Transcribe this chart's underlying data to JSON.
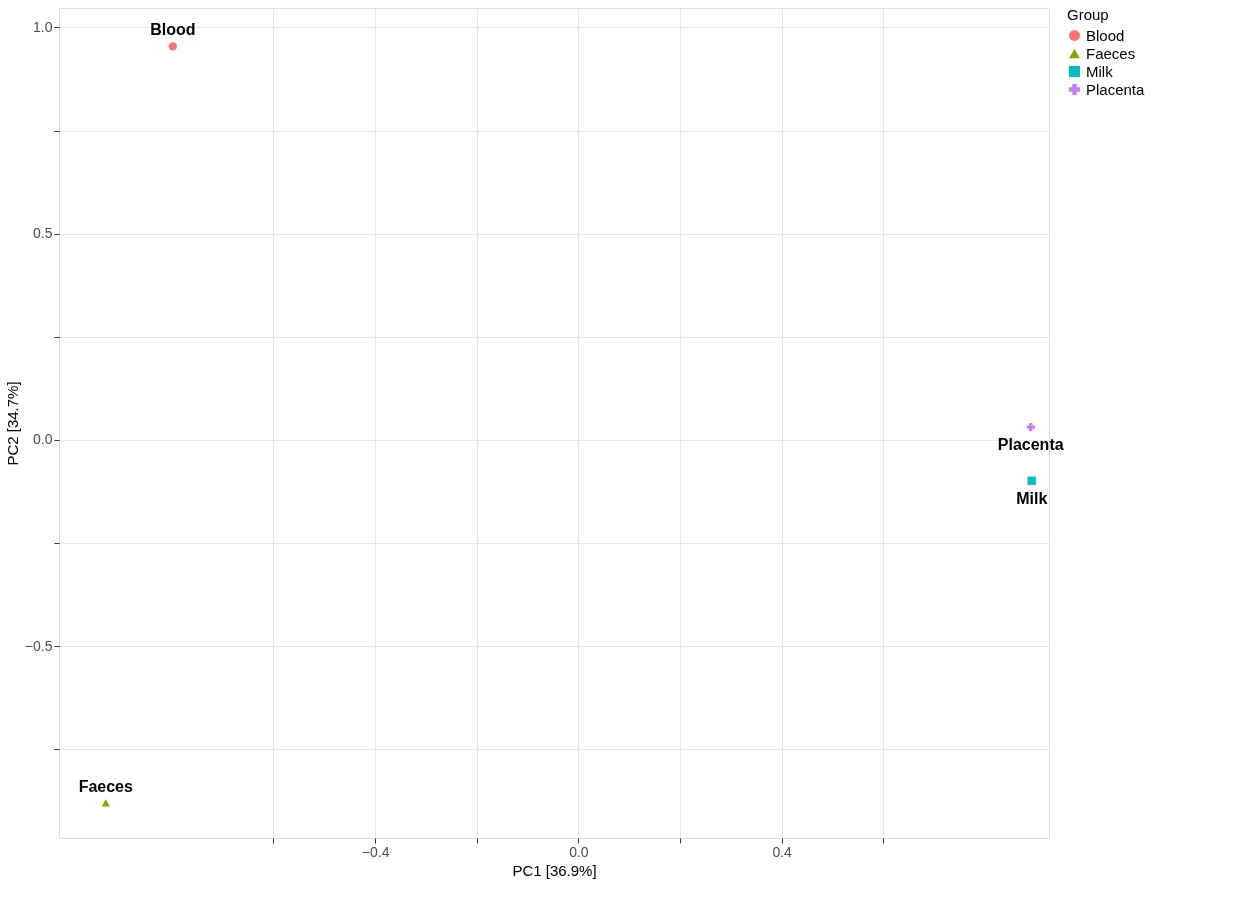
{
  "chart_data": {
    "type": "scatter",
    "xlabel": "PC1 [36.9%]",
    "ylabel": "PC2 [34.7%]",
    "legend_title": "Group",
    "series": [
      {
        "name": "Blood",
        "color": "#f8766d",
        "marker": "circle",
        "x": [
          -0.798
        ],
        "values": [
          0.954
        ]
      },
      {
        "name": "Faeces",
        "color": "#7cae00",
        "marker": "triangle",
        "x": [
          -0.93
        ],
        "values": [
          -0.88
        ]
      },
      {
        "name": "Milk",
        "color": "#00bfc4",
        "marker": "square",
        "x": [
          0.892
        ],
        "values": [
          -0.099
        ]
      },
      {
        "name": "Placenta",
        "color": "#c77cff",
        "marker": "cross",
        "x": [
          0.89
        ],
        "values": [
          0.031
        ]
      }
    ],
    "xlim": [
      -1.022,
      0.926
    ],
    "ylim": [
      -0.965,
      1.047
    ],
    "xticks": [
      {
        "value": -0.6,
        "label": null
      },
      {
        "value": -0.4,
        "label": "−0.4"
      },
      {
        "value": -0.2,
        "label": null
      },
      {
        "value": 0,
        "label": "0.0"
      },
      {
        "value": 0.2,
        "label": null
      },
      {
        "value": 0.4,
        "label": "0.4"
      },
      {
        "value": 0.6,
        "label": null
      }
    ],
    "yticks": [
      {
        "value": -0.75,
        "label": null
      },
      {
        "value": -0.5,
        "label": "−0.5"
      },
      {
        "value": -0.25,
        "label": null
      },
      {
        "value": 0,
        "label": "0.0"
      },
      {
        "value": 0.25,
        "label": null
      },
      {
        "value": 0.5,
        "label": "0.5"
      },
      {
        "value": 0.75,
        "label": null
      },
      {
        "value": 1,
        "label": "1.0"
      }
    ],
    "grid": true,
    "legend": "right"
  }
}
